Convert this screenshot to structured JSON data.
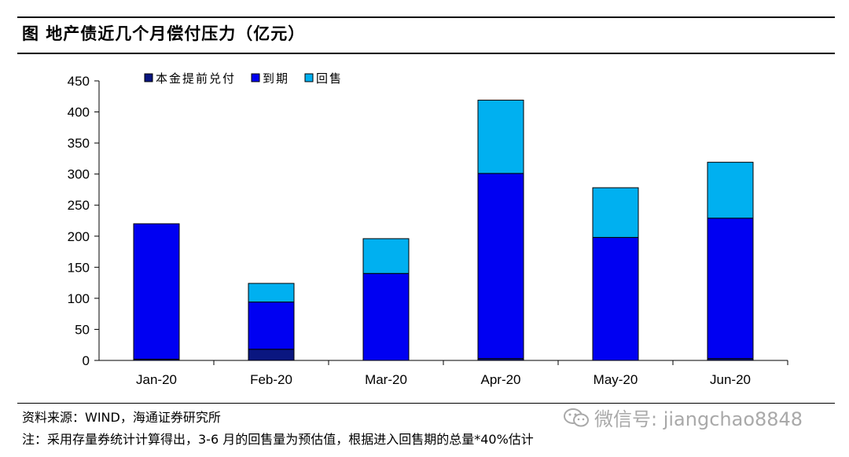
{
  "figure_title": "图 地产债近几个月偿付压力（亿元）",
  "source_note": "资料来源：WIND，海通证券研究所",
  "remark_note": "注：采用存量券统计计算得出，3-6 月的回售量为预估值，根据进入回售期的总量*40%估计",
  "watermark_text": "微信号: jiangchao8848",
  "icon": "wechat-icon",
  "chart_data": {
    "type": "bar",
    "stacked": true,
    "title": "",
    "xlabel": "",
    "ylabel": "",
    "ylim": [
      0,
      450
    ],
    "yticks": [
      0,
      50,
      100,
      150,
      200,
      250,
      300,
      350,
      400,
      450
    ],
    "grid": false,
    "legend_position": "top-left",
    "categories": [
      "Jan-20",
      "Feb-20",
      "Mar-20",
      "Apr-20",
      "May-20",
      "Jun-20"
    ],
    "series": [
      {
        "name": "本金提前兑付",
        "color": "#0a1680",
        "values": [
          2,
          18,
          0,
          3,
          0,
          3
        ]
      },
      {
        "name": "到期",
        "color": "#0000f2",
        "values": [
          218,
          76,
          140,
          298,
          198,
          226
        ]
      },
      {
        "name": "回售",
        "color": "#00b0f0",
        "values": [
          0,
          30,
          56,
          118,
          80,
          90
        ]
      }
    ]
  }
}
